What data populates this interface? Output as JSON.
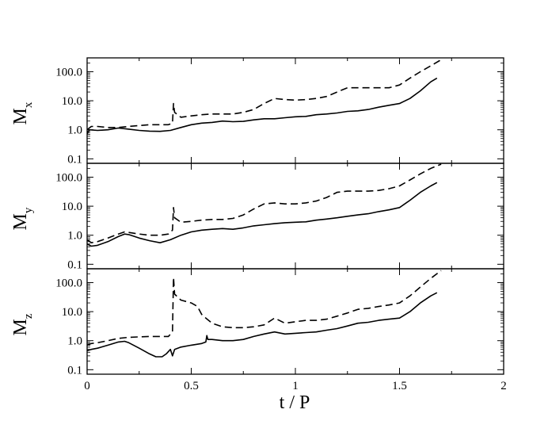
{
  "chart_data": [
    {
      "type": "line",
      "ylabel_main": "M",
      "ylabel_sub": "x",
      "yscale": "log",
      "ylim": [
        0.07,
        300
      ],
      "xlim": [
        0,
        2
      ],
      "yticks": [
        "0.1",
        "1.0",
        "10.0",
        "100.0"
      ],
      "series": [
        {
          "style": "solid",
          "points": [
            [
              0.0,
              0.7
            ],
            [
              0.01,
              1.0
            ],
            [
              0.05,
              0.95
            ],
            [
              0.1,
              1.0
            ],
            [
              0.15,
              1.15
            ],
            [
              0.2,
              1.05
            ],
            [
              0.25,
              0.95
            ],
            [
              0.3,
              0.9
            ],
            [
              0.35,
              0.88
            ],
            [
              0.4,
              0.95
            ],
            [
              0.45,
              1.2
            ],
            [
              0.5,
              1.5
            ],
            [
              0.55,
              1.7
            ],
            [
              0.6,
              1.8
            ],
            [
              0.65,
              2.0
            ],
            [
              0.7,
              1.9
            ],
            [
              0.75,
              1.95
            ],
            [
              0.8,
              2.2
            ],
            [
              0.85,
              2.4
            ],
            [
              0.9,
              2.4
            ],
            [
              0.95,
              2.6
            ],
            [
              1.0,
              2.8
            ],
            [
              1.05,
              2.9
            ],
            [
              1.1,
              3.3
            ],
            [
              1.15,
              3.5
            ],
            [
              1.2,
              3.8
            ],
            [
              1.25,
              4.3
            ],
            [
              1.3,
              4.5
            ],
            [
              1.35,
              5.0
            ],
            [
              1.4,
              6.0
            ],
            [
              1.45,
              7.0
            ],
            [
              1.5,
              8.0
            ],
            [
              1.55,
              12
            ],
            [
              1.6,
              22
            ],
            [
              1.65,
              45
            ],
            [
              1.68,
              60
            ]
          ]
        },
        {
          "style": "dashed",
          "points": [
            [
              0.0,
              1.0
            ],
            [
              0.02,
              1.3
            ],
            [
              0.05,
              1.3
            ],
            [
              0.1,
              1.2
            ],
            [
              0.15,
              1.2
            ],
            [
              0.2,
              1.3
            ],
            [
              0.25,
              1.4
            ],
            [
              0.3,
              1.5
            ],
            [
              0.35,
              1.5
            ],
            [
              0.39,
              1.5
            ],
            [
              0.41,
              1.7
            ],
            [
              0.415,
              8.0
            ],
            [
              0.42,
              4.0
            ],
            [
              0.45,
              2.7
            ],
            [
              0.5,
              3.0
            ],
            [
              0.55,
              3.3
            ],
            [
              0.6,
              3.5
            ],
            [
              0.65,
              3.5
            ],
            [
              0.7,
              3.5
            ],
            [
              0.75,
              4.0
            ],
            [
              0.8,
              5.0
            ],
            [
              0.85,
              8.0
            ],
            [
              0.9,
              12
            ],
            [
              0.95,
              11
            ],
            [
              1.0,
              10.5
            ],
            [
              1.05,
              11
            ],
            [
              1.1,
              12
            ],
            [
              1.15,
              14
            ],
            [
              1.2,
              20
            ],
            [
              1.25,
              28
            ],
            [
              1.3,
              28
            ],
            [
              1.35,
              28
            ],
            [
              1.4,
              28
            ],
            [
              1.45,
              28
            ],
            [
              1.5,
              35
            ],
            [
              1.55,
              60
            ],
            [
              1.6,
              100
            ],
            [
              1.65,
              160
            ],
            [
              1.7,
              260
            ]
          ]
        }
      ]
    },
    {
      "type": "line",
      "ylabel_main": "M",
      "ylabel_sub": "y",
      "yscale": "log",
      "ylim": [
        0.07,
        300
      ],
      "xlim": [
        0,
        2
      ],
      "yticks": [
        "0.1",
        "1.0",
        "10.0",
        "100.0"
      ],
      "series": [
        {
          "style": "solid",
          "points": [
            [
              0.0,
              0.5
            ],
            [
              0.02,
              0.42
            ],
            [
              0.05,
              0.45
            ],
            [
              0.1,
              0.6
            ],
            [
              0.15,
              0.9
            ],
            [
              0.18,
              1.1
            ],
            [
              0.2,
              1.05
            ],
            [
              0.25,
              0.8
            ],
            [
              0.3,
              0.65
            ],
            [
              0.35,
              0.55
            ],
            [
              0.4,
              0.7
            ],
            [
              0.45,
              1.0
            ],
            [
              0.5,
              1.3
            ],
            [
              0.55,
              1.5
            ],
            [
              0.6,
              1.6
            ],
            [
              0.65,
              1.7
            ],
            [
              0.7,
              1.6
            ],
            [
              0.75,
              1.8
            ],
            [
              0.8,
              2.1
            ],
            [
              0.85,
              2.3
            ],
            [
              0.9,
              2.5
            ],
            [
              0.95,
              2.7
            ],
            [
              1.0,
              2.8
            ],
            [
              1.05,
              2.9
            ],
            [
              1.1,
              3.3
            ],
            [
              1.15,
              3.6
            ],
            [
              1.2,
              4.0
            ],
            [
              1.25,
              4.5
            ],
            [
              1.3,
              5.0
            ],
            [
              1.35,
              5.5
            ],
            [
              1.4,
              6.5
            ],
            [
              1.45,
              7.5
            ],
            [
              1.5,
              9.0
            ],
            [
              1.55,
              16
            ],
            [
              1.6,
              30
            ],
            [
              1.65,
              50
            ],
            [
              1.68,
              65
            ]
          ]
        },
        {
          "style": "dashed",
          "points": [
            [
              0.0,
              0.7
            ],
            [
              0.02,
              0.55
            ],
            [
              0.05,
              0.6
            ],
            [
              0.1,
              0.8
            ],
            [
              0.15,
              1.1
            ],
            [
              0.18,
              1.3
            ],
            [
              0.2,
              1.25
            ],
            [
              0.25,
              1.1
            ],
            [
              0.3,
              1.0
            ],
            [
              0.35,
              1.0
            ],
            [
              0.39,
              1.1
            ],
            [
              0.41,
              1.5
            ],
            [
              0.415,
              9.0
            ],
            [
              0.42,
              4.0
            ],
            [
              0.45,
              2.8
            ],
            [
              0.5,
              3.0
            ],
            [
              0.55,
              3.3
            ],
            [
              0.6,
              3.5
            ],
            [
              0.65,
              3.5
            ],
            [
              0.7,
              3.8
            ],
            [
              0.75,
              5.0
            ],
            [
              0.8,
              8.0
            ],
            [
              0.85,
              12
            ],
            [
              0.9,
              13
            ],
            [
              0.95,
              12
            ],
            [
              1.0,
              12
            ],
            [
              1.05,
              13
            ],
            [
              1.1,
              15
            ],
            [
              1.15,
              20
            ],
            [
              1.2,
              30
            ],
            [
              1.25,
              33
            ],
            [
              1.3,
              33
            ],
            [
              1.35,
              33
            ],
            [
              1.4,
              35
            ],
            [
              1.45,
              40
            ],
            [
              1.5,
              50
            ],
            [
              1.55,
              80
            ],
            [
              1.6,
              130
            ],
            [
              1.65,
              200
            ],
            [
              1.7,
              280
            ]
          ]
        }
      ]
    },
    {
      "type": "line",
      "ylabel_main": "M",
      "ylabel_sub": "z",
      "yscale": "log",
      "ylim": [
        0.07,
        300
      ],
      "xlim": [
        0,
        2
      ],
      "yticks": [
        "0.1",
        "1.0",
        "10.0",
        "100.0"
      ],
      "series": [
        {
          "style": "solid",
          "points": [
            [
              0.0,
              0.45
            ],
            [
              0.02,
              0.5
            ],
            [
              0.05,
              0.55
            ],
            [
              0.1,
              0.7
            ],
            [
              0.15,
              0.9
            ],
            [
              0.18,
              0.95
            ],
            [
              0.2,
              0.85
            ],
            [
              0.25,
              0.55
            ],
            [
              0.3,
              0.35
            ],
            [
              0.33,
              0.28
            ],
            [
              0.36,
              0.28
            ],
            [
              0.38,
              0.35
            ],
            [
              0.4,
              0.5
            ],
            [
              0.41,
              0.3
            ],
            [
              0.42,
              0.5
            ],
            [
              0.45,
              0.6
            ],
            [
              0.5,
              0.7
            ],
            [
              0.55,
              0.8
            ],
            [
              0.57,
              0.9
            ],
            [
              0.575,
              1.5
            ],
            [
              0.58,
              1.1
            ],
            [
              0.6,
              1.1
            ],
            [
              0.65,
              1.0
            ],
            [
              0.7,
              1.0
            ],
            [
              0.75,
              1.1
            ],
            [
              0.8,
              1.4
            ],
            [
              0.85,
              1.7
            ],
            [
              0.9,
              2.0
            ],
            [
              0.95,
              1.7
            ],
            [
              1.0,
              1.8
            ],
            [
              1.05,
              1.9
            ],
            [
              1.1,
              2.0
            ],
            [
              1.15,
              2.3
            ],
            [
              1.2,
              2.6
            ],
            [
              1.25,
              3.2
            ],
            [
              1.3,
              4.0
            ],
            [
              1.35,
              4.3
            ],
            [
              1.4,
              5.0
            ],
            [
              1.45,
              5.5
            ],
            [
              1.5,
              6.0
            ],
            [
              1.55,
              10
            ],
            [
              1.6,
              20
            ],
            [
              1.65,
              35
            ],
            [
              1.68,
              45
            ]
          ]
        },
        {
          "style": "dashed",
          "points": [
            [
              0.0,
              0.7
            ],
            [
              0.02,
              0.8
            ],
            [
              0.05,
              0.85
            ],
            [
              0.1,
              1.0
            ],
            [
              0.15,
              1.2
            ],
            [
              0.2,
              1.3
            ],
            [
              0.25,
              1.35
            ],
            [
              0.3,
              1.4
            ],
            [
              0.35,
              1.4
            ],
            [
              0.39,
              1.4
            ],
            [
              0.41,
              2.0
            ],
            [
              0.415,
              150
            ],
            [
              0.42,
              40
            ],
            [
              0.45,
              25
            ],
            [
              0.5,
              20
            ],
            [
              0.53,
              15
            ],
            [
              0.55,
              8.0
            ],
            [
              0.57,
              6.0
            ],
            [
              0.6,
              4.0
            ],
            [
              0.65,
              3.0
            ],
            [
              0.7,
              2.8
            ],
            [
              0.75,
              2.8
            ],
            [
              0.8,
              3.0
            ],
            [
              0.85,
              3.5
            ],
            [
              0.9,
              6.0
            ],
            [
              0.95,
              4.0
            ],
            [
              1.0,
              4.5
            ],
            [
              1.05,
              5.0
            ],
            [
              1.1,
              5.0
            ],
            [
              1.15,
              5.5
            ],
            [
              1.2,
              7.0
            ],
            [
              1.25,
              9.0
            ],
            [
              1.3,
              12
            ],
            [
              1.35,
              13
            ],
            [
              1.4,
              15
            ],
            [
              1.45,
              17
            ],
            [
              1.5,
              20
            ],
            [
              1.55,
              35
            ],
            [
              1.6,
              70
            ],
            [
              1.65,
              140
            ],
            [
              1.7,
              260
            ]
          ]
        }
      ]
    }
  ],
  "xaxis": {
    "label": "t / P",
    "ticks": [
      "0",
      "0.5",
      "1",
      "1.5",
      "2"
    ]
  }
}
